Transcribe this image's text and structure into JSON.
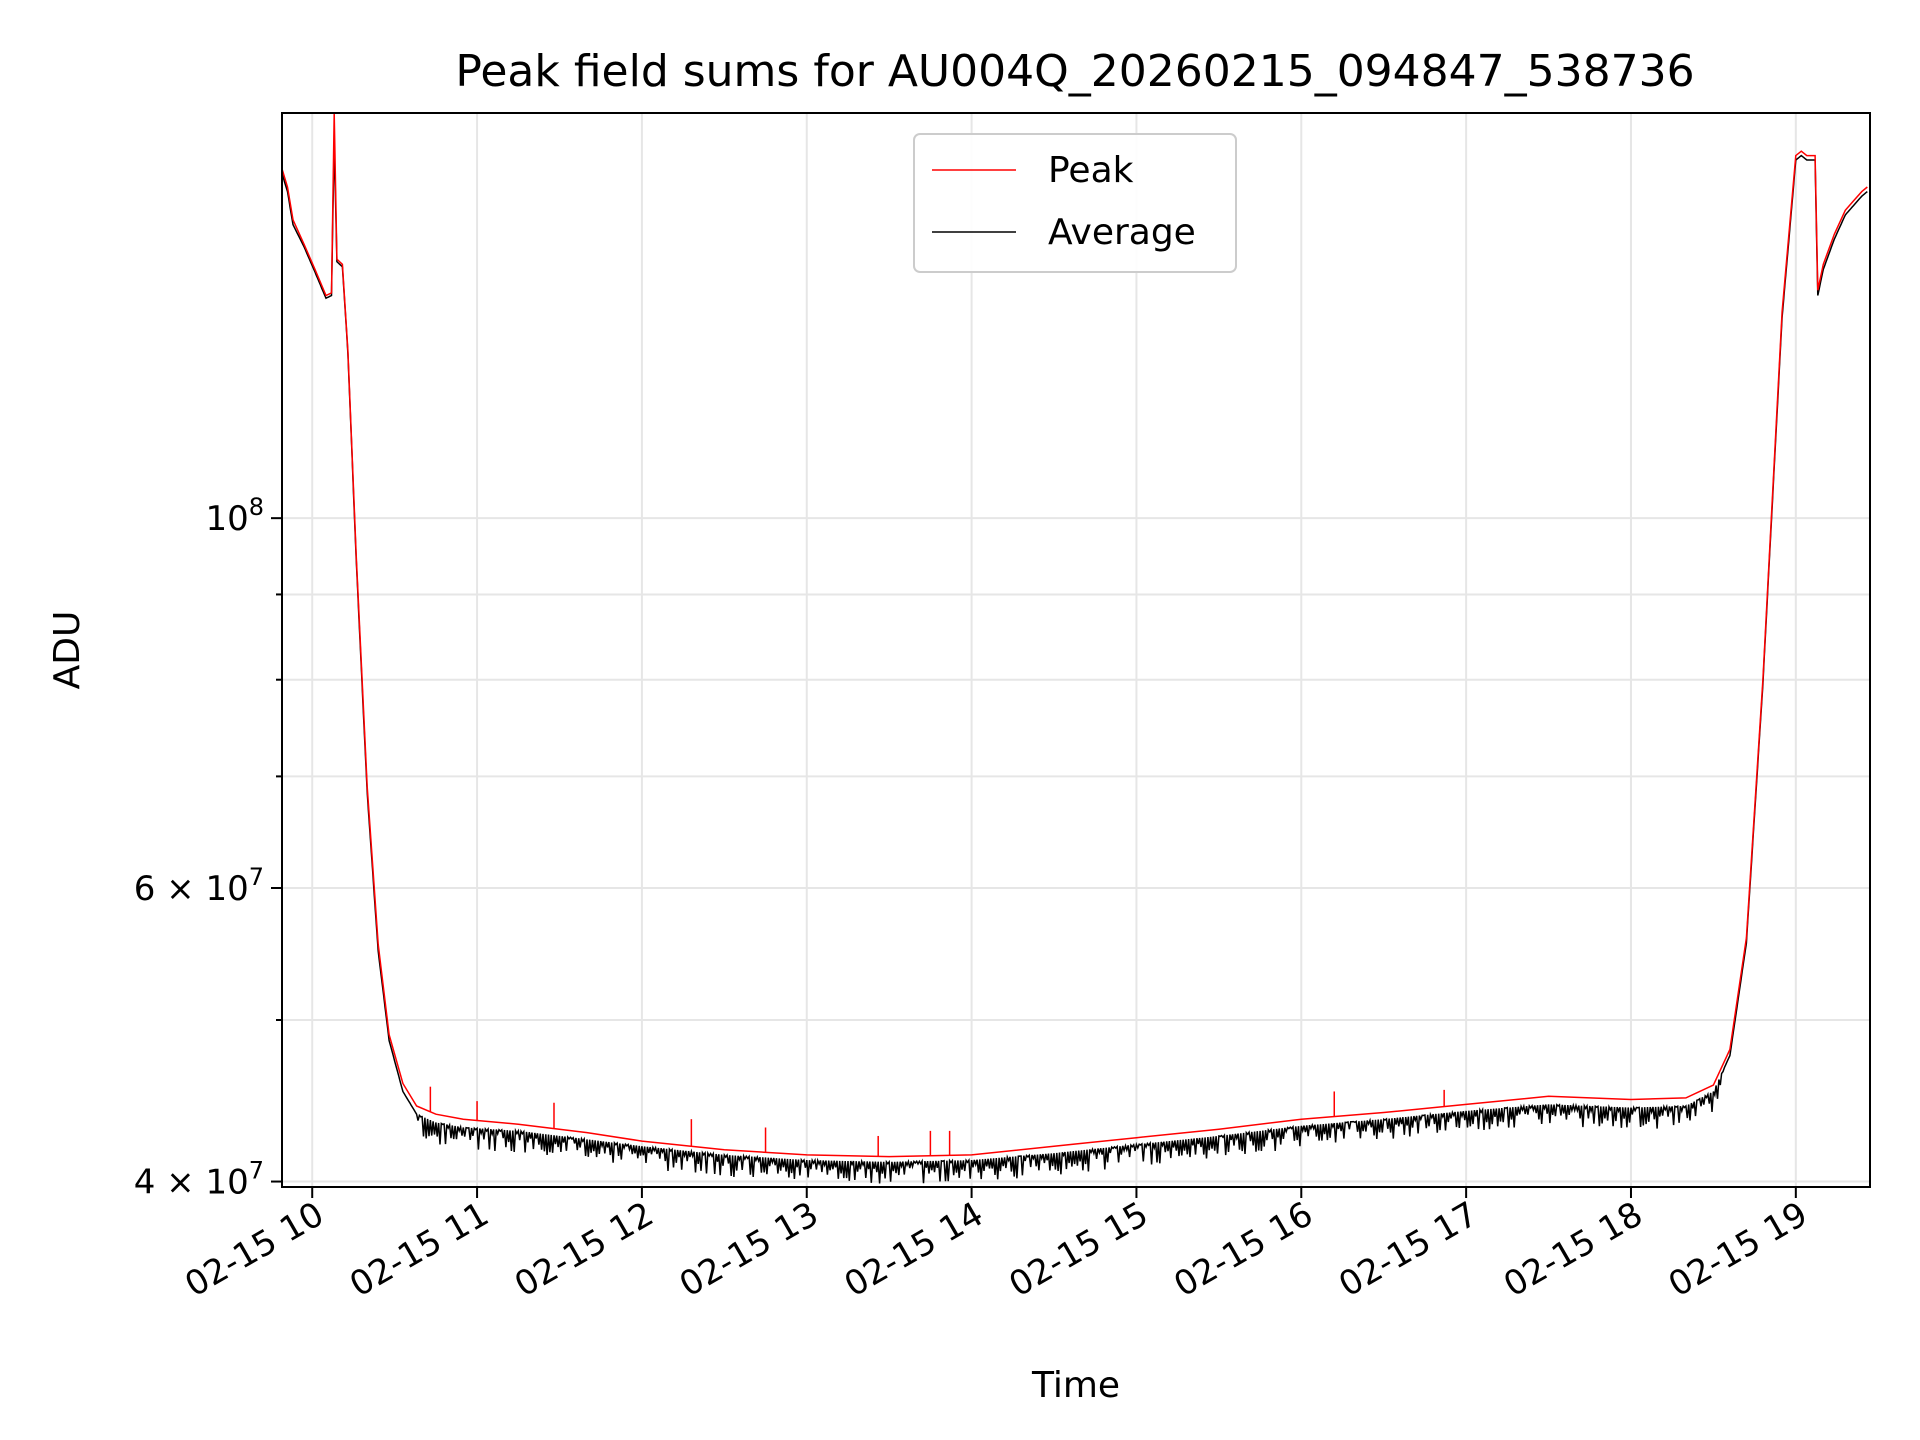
{
  "chart_data": {
    "type": "line",
    "title": "Peak field sums for AU004Q_20260215_094847_538736",
    "xlabel": "Time",
    "ylabel": "ADU",
    "yscale": "log",
    "xlim": [
      "2026-02-15 09:49",
      "2026-02-15 19:27"
    ],
    "ylim": [
      39700000,
      175000000
    ],
    "x_ticks": [
      {
        "t": "2026-02-15 10:00",
        "label": "02-15 10"
      },
      {
        "t": "2026-02-15 11:00",
        "label": "02-15 11"
      },
      {
        "t": "2026-02-15 12:00",
        "label": "02-15 12"
      },
      {
        "t": "2026-02-15 13:00",
        "label": "02-15 13"
      },
      {
        "t": "2026-02-15 14:00",
        "label": "02-15 14"
      },
      {
        "t": "2026-02-15 15:00",
        "label": "02-15 15"
      },
      {
        "t": "2026-02-15 16:00",
        "label": "02-15 16"
      },
      {
        "t": "2026-02-15 17:00",
        "label": "02-15 17"
      },
      {
        "t": "2026-02-15 18:00",
        "label": "02-15 18"
      },
      {
        "t": "2026-02-15 19:00",
        "label": "02-15 19"
      }
    ],
    "y_major_ticks": [
      {
        "value": 40000000,
        "base": "4",
        "mantissa": "×",
        "exp_base": "10",
        "exp": "7"
      },
      {
        "value": 60000000,
        "base": "6",
        "mantissa": "×",
        "exp_base": "10",
        "exp": "7"
      },
      {
        "value": 100000000,
        "base": "",
        "mantissa": "",
        "exp_base": "10",
        "exp": "8"
      }
    ],
    "y_minor_ticks": [
      50000000,
      70000000,
      80000000,
      90000000
    ],
    "grid": true,
    "legend_position": "upper center",
    "series": [
      {
        "name": "Peak",
        "color": "#ff0000",
        "x": [
          "2026-02-15 09:49",
          "2026-02-15 09:51",
          "2026-02-15 09:53",
          "2026-02-15 09:57",
          "2026-02-15 10:01",
          "2026-02-15 10:05",
          "2026-02-15 10:07",
          "2026-02-15 10:08",
          "2026-02-15 10:09",
          "2026-02-15 10:11",
          "2026-02-15 10:13",
          "2026-02-15 10:16",
          "2026-02-15 10:20",
          "2026-02-15 10:24",
          "2026-02-15 10:28",
          "2026-02-15 10:33",
          "2026-02-15 10:38",
          "2026-02-15 10:45",
          "2026-02-15 10:55",
          "2026-02-15 11:15",
          "2026-02-15 11:40",
          "2026-02-15 12:00",
          "2026-02-15 12:30",
          "2026-02-15 13:00",
          "2026-02-15 13:30",
          "2026-02-15 14:00",
          "2026-02-15 14:30",
          "2026-02-15 15:00",
          "2026-02-15 15:30",
          "2026-02-15 16:00",
          "2026-02-15 16:30",
          "2026-02-15 17:00",
          "2026-02-15 17:30",
          "2026-02-15 18:00",
          "2026-02-15 18:20",
          "2026-02-15 18:30",
          "2026-02-15 18:36",
          "2026-02-15 18:42",
          "2026-02-15 18:48",
          "2026-02-15 18:55",
          "2026-02-15 19:00",
          "2026-02-15 19:02",
          "2026-02-15 19:04",
          "2026-02-15 19:07",
          "2026-02-15 19:08",
          "2026-02-15 19:10",
          "2026-02-15 19:14",
          "2026-02-15 19:18",
          "2026-02-15 19:21",
          "2026-02-15 19:24",
          "2026-02-15 19:26"
        ],
        "y": [
          162000000,
          158000000,
          151000000,
          146000000,
          141000000,
          136000000,
          136500000,
          175000000,
          143000000,
          142000000,
          126000000,
          95000000,
          69000000,
          55500000,
          49000000,
          45800000,
          44400000,
          43900000,
          43600000,
          43300000,
          42800000,
          42300000,
          41800000,
          41500000,
          41400000,
          41500000,
          42000000,
          42500000,
          43000000,
          43600000,
          44000000,
          44500000,
          45000000,
          44800000,
          44900000,
          45700000,
          48000000,
          56000000,
          80000000,
          133000000,
          165000000,
          166000000,
          165000000,
          165000000,
          137000000,
          142000000,
          148000000,
          153000000,
          155000000,
          157000000,
          158000000
        ]
      },
      {
        "name": "Average",
        "color": "#000000",
        "x": [
          "2026-02-15 09:49",
          "2026-02-15 09:51",
          "2026-02-15 09:53",
          "2026-02-15 09:57",
          "2026-02-15 10:01",
          "2026-02-15 10:05",
          "2026-02-15 10:07",
          "2026-02-15 10:08",
          "2026-02-15 10:09",
          "2026-02-15 10:11",
          "2026-02-15 10:13",
          "2026-02-15 10:16",
          "2026-02-15 10:20",
          "2026-02-15 10:24",
          "2026-02-15 10:28",
          "2026-02-15 10:33",
          "2026-02-15 10:38",
          "2026-02-15 10:45",
          "2026-02-15 10:55",
          "2026-02-15 11:15",
          "2026-02-15 11:40",
          "2026-02-15 12:00",
          "2026-02-15 12:30",
          "2026-02-15 13:00",
          "2026-02-15 13:30",
          "2026-02-15 14:00",
          "2026-02-15 14:30",
          "2026-02-15 15:00",
          "2026-02-15 15:30",
          "2026-02-15 16:00",
          "2026-02-15 16:30",
          "2026-02-15 17:00",
          "2026-02-15 17:30",
          "2026-02-15 18:00",
          "2026-02-15 18:20",
          "2026-02-15 18:30",
          "2026-02-15 18:36",
          "2026-02-15 18:42",
          "2026-02-15 18:48",
          "2026-02-15 18:55",
          "2026-02-15 19:00",
          "2026-02-15 19:02",
          "2026-02-15 19:04",
          "2026-02-15 19:07",
          "2026-02-15 19:08",
          "2026-02-15 19:10",
          "2026-02-15 19:14",
          "2026-02-15 19:18",
          "2026-02-15 19:21",
          "2026-02-15 19:24",
          "2026-02-15 19:26"
        ],
        "y": [
          161000000,
          157000000,
          150000000,
          145500000,
          140500000,
          135500000,
          136000000,
          168000000,
          142500000,
          141500000,
          125500000,
          94500000,
          68500000,
          55000000,
          48600000,
          45300000,
          43900000,
          43400000,
          43100000,
          42900000,
          42400000,
          42000000,
          41500000,
          41200000,
          41100000,
          41200000,
          41600000,
          42100000,
          42600000,
          43200000,
          43600000,
          44100000,
          44500000,
          44300000,
          44400000,
          45300000,
          47600000,
          55600000,
          79500000,
          132000000,
          164000000,
          165000000,
          164000000,
          164000000,
          136000000,
          141000000,
          147000000,
          152000000,
          154000000,
          156000000,
          157000000
        ]
      }
    ],
    "peak_spikes": [
      {
        "t": "2026-02-15 10:43",
        "y": 45600000
      },
      {
        "t": "2026-02-15 11:00",
        "y": 44700000
      },
      {
        "t": "2026-02-15 11:28",
        "y": 44600000
      },
      {
        "t": "2026-02-15 12:18",
        "y": 43600000
      },
      {
        "t": "2026-02-15 12:45",
        "y": 43100000
      },
      {
        "t": "2026-02-15 13:26",
        "y": 42600000
      },
      {
        "t": "2026-02-15 13:45",
        "y": 42900000
      },
      {
        "t": "2026-02-15 13:52",
        "y": 42900000
      },
      {
        "t": "2026-02-15 16:12",
        "y": 45300000
      },
      {
        "t": "2026-02-15 16:52",
        "y": 45400000
      }
    ]
  }
}
